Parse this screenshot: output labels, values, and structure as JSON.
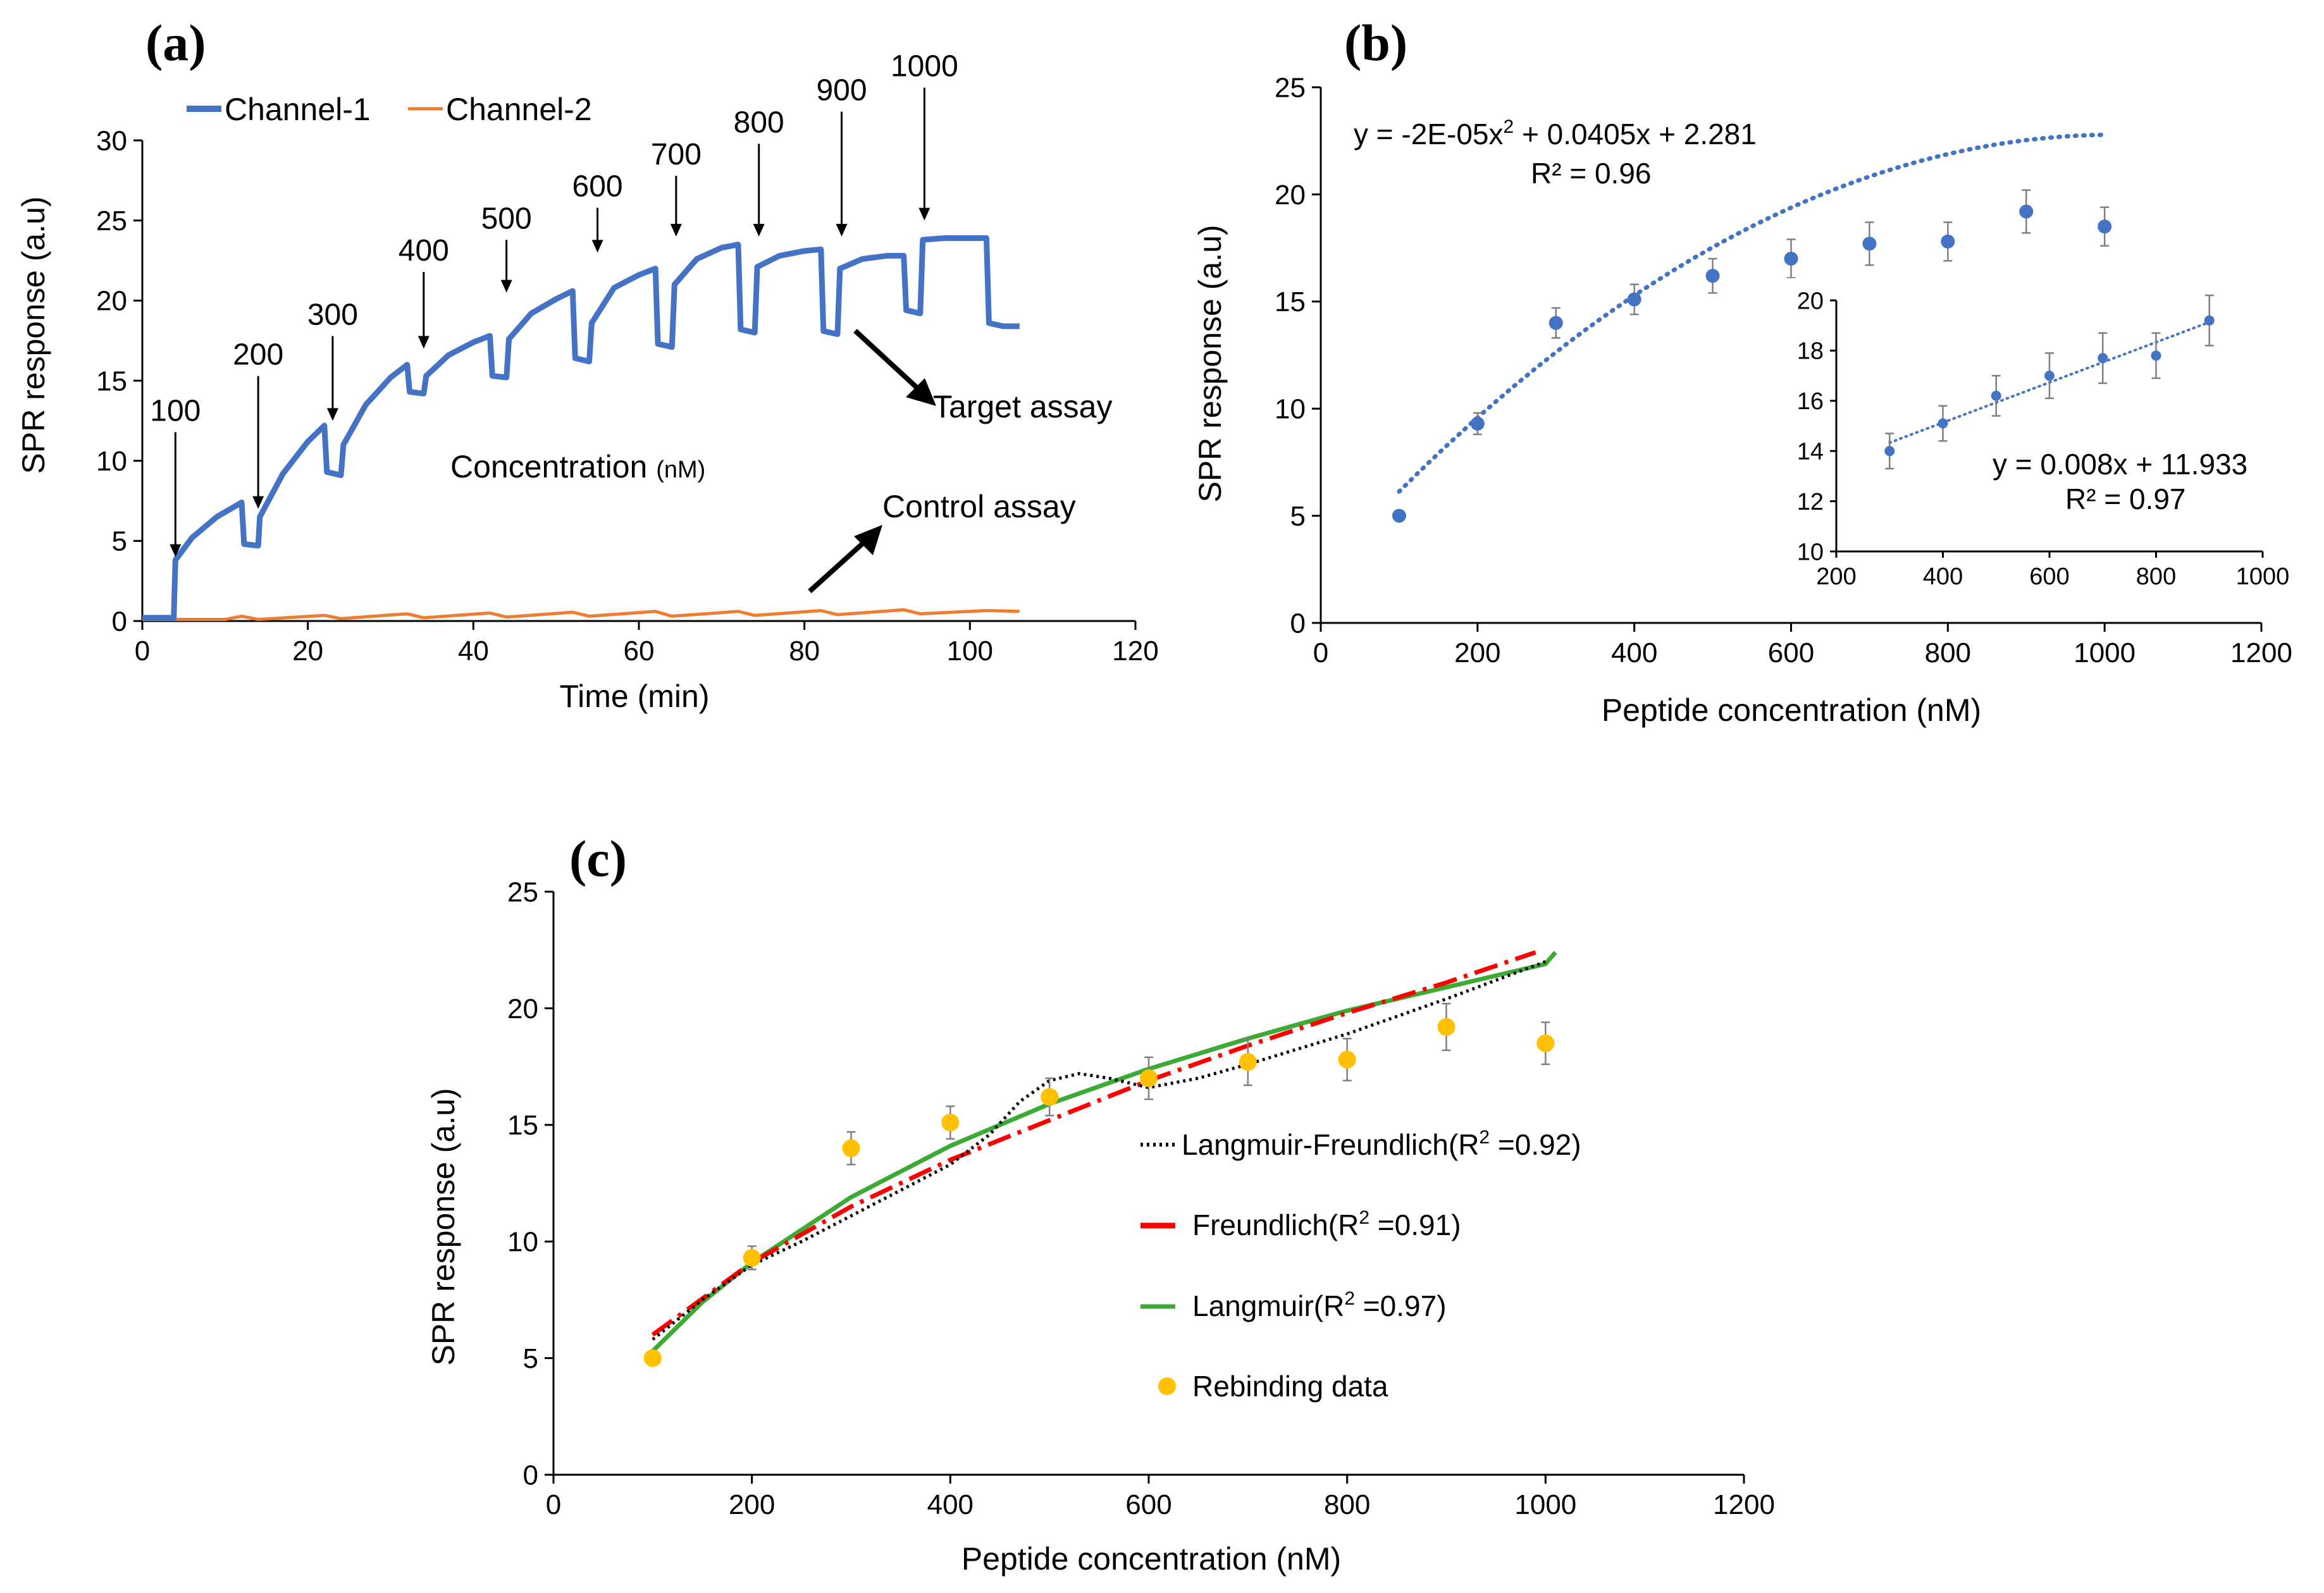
{
  "colors": {
    "channel1": "#4472c4",
    "channel2": "#ed7d31",
    "fit_b": "#4472c4",
    "langmuir_freundlich": "#000000",
    "freundlich": "#ff0000",
    "langmuir": "#3daa35",
    "rebinding": "#ffc000",
    "error_bar": "#7f7f7f"
  },
  "chart_data": [
    {
      "panel": "a",
      "type": "line",
      "panel_label": "(a)",
      "xlabel": "Time (min)",
      "ylabel": "SPR response (a.u)",
      "xlim": [
        0,
        120
      ],
      "ylim": [
        0,
        30
      ],
      "xticks": [
        0,
        20,
        40,
        60,
        80,
        100,
        120
      ],
      "yticks": [
        0,
        5,
        10,
        15,
        20,
        25,
        30
      ],
      "legend": [
        "Channel-1",
        "Channel-2"
      ],
      "series": [
        {
          "name": "Channel-1",
          "points": [
            [
              0,
              0.2
            ],
            [
              3.8,
              0.2
            ],
            [
              4,
              3.8
            ],
            [
              6,
              5.2
            ],
            [
              9,
              6.5
            ],
            [
              12,
              7.4
            ],
            [
              12.3,
              4.8
            ],
            [
              14,
              4.7
            ],
            [
              14.2,
              6.5
            ],
            [
              17,
              9.2
            ],
            [
              20,
              11.2
            ],
            [
              22,
              12.2
            ],
            [
              22.3,
              9.3
            ],
            [
              24,
              9.1
            ],
            [
              24.3,
              11
            ],
            [
              27,
              13.5
            ],
            [
              30,
              15.2
            ],
            [
              32,
              16
            ],
            [
              32.3,
              14.3
            ],
            [
              34,
              14.2
            ],
            [
              34.3,
              15.3
            ],
            [
              37,
              16.6
            ],
            [
              40,
              17.4
            ],
            [
              42,
              17.8
            ],
            [
              42.3,
              15.3
            ],
            [
              44,
              15.2
            ],
            [
              44.3,
              17.6
            ],
            [
              47,
              19.2
            ],
            [
              50,
              20.1
            ],
            [
              52,
              20.6
            ],
            [
              52.3,
              16.4
            ],
            [
              54,
              16.2
            ],
            [
              54.3,
              18.6
            ],
            [
              57,
              20.8
            ],
            [
              60,
              21.6
            ],
            [
              62,
              22
            ],
            [
              62.3,
              17.3
            ],
            [
              64,
              17.1
            ],
            [
              64.3,
              21
            ],
            [
              67,
              22.6
            ],
            [
              70,
              23.3
            ],
            [
              72,
              23.5
            ],
            [
              72.3,
              18.2
            ],
            [
              74,
              18
            ],
            [
              74.3,
              22.1
            ],
            [
              77,
              22.8
            ],
            [
              80,
              23.1
            ],
            [
              82,
              23.2
            ],
            [
              82.3,
              18.1
            ],
            [
              84,
              17.9
            ],
            [
              84.3,
              22
            ],
            [
              87,
              22.6
            ],
            [
              90,
              22.8
            ],
            [
              92,
              22.8
            ],
            [
              92.3,
              19.4
            ],
            [
              94,
              19.2
            ],
            [
              94.3,
              23.8
            ],
            [
              97,
              23.9
            ],
            [
              100,
              23.9
            ],
            [
              102,
              23.9
            ],
            [
              102.3,
              18.6
            ],
            [
              104,
              18.4
            ],
            [
              106,
              18.4
            ]
          ]
        },
        {
          "name": "Channel-2",
          "points": [
            [
              0,
              0.1
            ],
            [
              10,
              0.1
            ],
            [
              12,
              0.3
            ],
            [
              14,
              0.1
            ],
            [
              22,
              0.35
            ],
            [
              24,
              0.15
            ],
            [
              32,
              0.45
            ],
            [
              34,
              0.2
            ],
            [
              42,
              0.5
            ],
            [
              44,
              0.25
            ],
            [
              52,
              0.55
            ],
            [
              54,
              0.3
            ],
            [
              62,
              0.6
            ],
            [
              64,
              0.3
            ],
            [
              72,
              0.6
            ],
            [
              74,
              0.35
            ],
            [
              82,
              0.65
            ],
            [
              84,
              0.4
            ],
            [
              92,
              0.7
            ],
            [
              94,
              0.45
            ],
            [
              102,
              0.65
            ],
            [
              106,
              0.6
            ]
          ]
        }
      ],
      "injection_labels": [
        "100",
        "200",
        "300",
        "400",
        "500",
        "600",
        "700",
        "800",
        "900",
        "1000"
      ],
      "injection_points": [
        [
          4,
          4
        ],
        [
          14,
          7
        ],
        [
          23,
          12.5
        ],
        [
          34,
          17
        ],
        [
          44,
          20.5
        ],
        [
          55,
          23
        ],
        [
          64.5,
          24
        ],
        [
          74.5,
          24
        ],
        [
          84.5,
          24
        ],
        [
          94.5,
          25
        ]
      ],
      "injection_label_positions": [
        [
          4,
          12.5
        ],
        [
          14,
          16
        ],
        [
          23.5,
          18.5
        ],
        [
          34.5,
          22.5
        ],
        [
          44.5,
          24.5
        ],
        [
          55,
          26.5
        ],
        [
          64.5,
          28.5
        ],
        [
          74.5,
          30.5
        ],
        [
          84.5,
          32.5
        ],
        [
          94.5,
          34
        ]
      ],
      "annotations": {
        "concentration": "Concentration",
        "concentration_unit": "(nM)",
        "target": "Target assay",
        "control": "Control assay"
      }
    },
    {
      "panel": "b",
      "type": "scatter",
      "panel_label": "(b)",
      "xlabel": "Peptide concentration (nM)",
      "ylabel": "SPR response (a.u)",
      "xlim": [
        0,
        1200
      ],
      "ylim": [
        0,
        25
      ],
      "xticks": [
        0,
        200,
        400,
        600,
        800,
        1000,
        1200
      ],
      "yticks": [
        0,
        5,
        10,
        15,
        20,
        25
      ],
      "x": [
        100,
        200,
        300,
        400,
        500,
        600,
        700,
        800,
        900,
        1000
      ],
      "y": [
        5.0,
        9.3,
        14.0,
        15.1,
        16.2,
        17.0,
        17.7,
        17.8,
        19.2,
        18.5
      ],
      "err": [
        0,
        0.5,
        0.7,
        0.7,
        0.8,
        0.9,
        1.0,
        0.9,
        1.0,
        0.9
      ],
      "fit": {
        "a": -2e-05,
        "b": 0.0405,
        "c": 2.281,
        "x_from": 100,
        "x_to": 1000
      },
      "equation": "y = -2E-05x",
      "equation_exp": "2",
      "equation_rest": " + 0.0405x + 2.281",
      "r2_label": "R² = 0.96",
      "inset": {
        "xlim": [
          200,
          1000
        ],
        "ylim": [
          10,
          20
        ],
        "xticks": [
          200,
          400,
          600,
          800,
          1000
        ],
        "yticks": [
          10,
          12,
          14,
          16,
          18,
          20
        ],
        "x": [
          300,
          400,
          500,
          600,
          700,
          800,
          900
        ],
        "y": [
          14.0,
          15.1,
          16.2,
          17.0,
          17.7,
          17.8,
          19.2
        ],
        "err": [
          0.7,
          0.7,
          0.8,
          0.9,
          1.0,
          0.9,
          1.0
        ],
        "fit": {
          "m": 0.008,
          "c": 11.933,
          "x_from": 300,
          "x_to": 900
        },
        "equation": "y = 0.008x + 11.933",
        "r2_label": "R² = 0.97"
      }
    },
    {
      "panel": "c",
      "type": "scatter",
      "panel_label": "(c)",
      "xlabel": "Peptide concentration (nM)",
      "ylabel": "SPR response (a.u)",
      "xlim": [
        0,
        1200
      ],
      "ylim": [
        0,
        25
      ],
      "xticks": [
        0,
        200,
        400,
        600,
        800,
        1000,
        1200
      ],
      "yticks": [
        0,
        5,
        10,
        15,
        20,
        25
      ],
      "x": [
        100,
        200,
        300,
        400,
        500,
        600,
        700,
        800,
        900,
        1000
      ],
      "y": [
        5.0,
        9.3,
        14.0,
        15.1,
        16.2,
        17.0,
        17.7,
        17.8,
        19.2,
        18.5
      ],
      "err": [
        0,
        0.5,
        0.7,
        0.7,
        0.8,
        0.9,
        1.0,
        0.9,
        1.0,
        0.9
      ],
      "langmuir_freundlich": [
        [
          100,
          5.8
        ],
        [
          150,
          7.5
        ],
        [
          200,
          9.0
        ],
        [
          250,
          10.0
        ],
        [
          300,
          11.1
        ],
        [
          350,
          12.2
        ],
        [
          400,
          13.3
        ],
        [
          440,
          14.6
        ],
        [
          470,
          16.0
        ],
        [
          500,
          16.9
        ],
        [
          530,
          17.2
        ],
        [
          560,
          17.0
        ],
        [
          600,
          16.6
        ],
        [
          650,
          17.0
        ],
        [
          700,
          17.6
        ],
        [
          800,
          18.9
        ],
        [
          900,
          20.4
        ],
        [
          1000,
          22.0
        ]
      ],
      "freundlich": [
        [
          100,
          6.0
        ],
        [
          200,
          9.1
        ],
        [
          300,
          11.5
        ],
        [
          400,
          13.5
        ],
        [
          500,
          15.2
        ],
        [
          600,
          16.9
        ],
        [
          700,
          18.4
        ],
        [
          800,
          19.8
        ],
        [
          900,
          21.1
        ],
        [
          990,
          22.4
        ]
      ],
      "langmuir": [
        [
          100,
          5.3
        ],
        [
          150,
          7.4
        ],
        [
          200,
          9.1
        ],
        [
          300,
          11.9
        ],
        [
          400,
          14.1
        ],
        [
          500,
          15.9
        ],
        [
          600,
          17.4
        ],
        [
          700,
          18.7
        ],
        [
          800,
          19.9
        ],
        [
          900,
          20.9
        ],
        [
          1000,
          21.9
        ],
        [
          1010,
          22.4
        ]
      ],
      "legend": {
        "lf": "Langmuir-Freundlich",
        "lf_r2": "(R",
        "lf_val": " =0.92)",
        "fr": "Freundlich",
        "fr_val": " =0.91)",
        "la": "Langmuir",
        "la_val": " =0.97)",
        "sq": "2",
        "data": "Rebinding data"
      }
    }
  ]
}
